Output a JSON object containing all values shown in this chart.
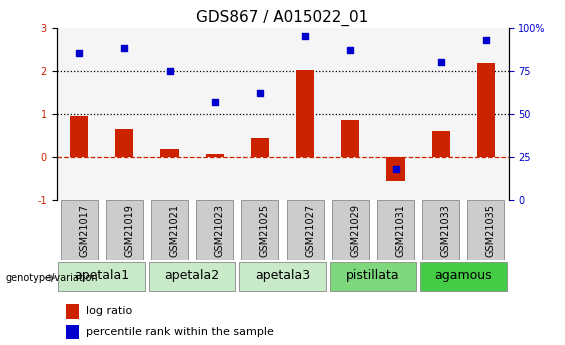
{
  "title": "GDS867 / A015022_01",
  "samples": [
    "GSM21017",
    "GSM21019",
    "GSM21021",
    "GSM21023",
    "GSM21025",
    "GSM21027",
    "GSM21029",
    "GSM21031",
    "GSM21033",
    "GSM21035"
  ],
  "log_ratio": [
    0.95,
    0.65,
    0.18,
    0.08,
    0.45,
    2.02,
    0.85,
    -0.55,
    0.6,
    2.18
  ],
  "percentile_rank": [
    85,
    88,
    75,
    57,
    62,
    95,
    87,
    18,
    80,
    93
  ],
  "groups": [
    {
      "label": "apetala1",
      "samples": [
        0,
        1
      ],
      "color": "#c8eac8"
    },
    {
      "label": "apetala2",
      "samples": [
        2,
        3
      ],
      "color": "#c8eac8"
    },
    {
      "label": "apetala3",
      "samples": [
        4,
        5
      ],
      "color": "#c8eac8"
    },
    {
      "label": "pistillata",
      "samples": [
        6,
        7
      ],
      "color": "#7dd87d"
    },
    {
      "label": "agamous",
      "samples": [
        8,
        9
      ],
      "color": "#44cc44"
    }
  ],
  "ylim_left": [
    -1,
    3
  ],
  "ylim_right": [
    0,
    100
  ],
  "yticks_left": [
    -1,
    0,
    1,
    2,
    3
  ],
  "yticks_right": [
    0,
    25,
    50,
    75,
    100
  ],
  "bar_color": "#cc2200",
  "dot_color": "#0000cc",
  "hline0_style": "--",
  "hline0_color": "#cc2200",
  "hline1_style": ":",
  "hline1_color": "black",
  "hline2_style": ":",
  "hline2_color": "black",
  "background_color": "#ffffff",
  "plot_bg_color": "#f5f5f5",
  "sample_box_color": "#cccccc",
  "title_fontsize": 11,
  "tick_fontsize": 7,
  "legend_fontsize": 8,
  "group_label_fontsize": 9,
  "genotype_label": "genotype/variation"
}
